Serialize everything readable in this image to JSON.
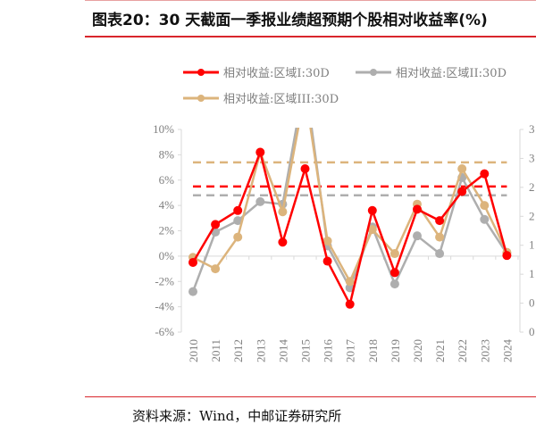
{
  "title": "图表20：30 天截面一季报业绩超预期个股相对收益率(%)",
  "source": "资料来源：Wind，中邮证券研究所",
  "chart_data": {
    "type": "line",
    "title": "图表20：30 天截面一季报业绩超预期个股相对收益率(%)",
    "categories": [
      "2010",
      "2011",
      "2012",
      "2013",
      "2014",
      "2015",
      "2016",
      "2017",
      "2018",
      "2019",
      "2020",
      "2021",
      "2022",
      "2023",
      "2024"
    ],
    "ylim": [
      -6,
      10
    ],
    "yticks": [
      "10%",
      "8%",
      "6%",
      "4%",
      "2%",
      "0%",
      "-2%",
      "-4%",
      "-6%"
    ],
    "y2ticks": [
      "3",
      "3",
      "2",
      "2",
      "1",
      "1",
      "0",
      "0"
    ],
    "grid": false,
    "legend_position": "top",
    "series": [
      {
        "name": "相对收益:区域I:30D",
        "color": "#ff0000",
        "values": [
          -0.5,
          2.5,
          3.6,
          8.2,
          1.1,
          6.9,
          -0.4,
          -3.8,
          3.6,
          -1.3,
          3.7,
          2.8,
          5.1,
          6.5,
          0.05
        ],
        "mean": 5.5
      },
      {
        "name": "相对收益:区域II:30D",
        "color": "#aeaeae",
        "values": [
          -2.8,
          1.9,
          2.8,
          4.3,
          4.1,
          14,
          0.8,
          -2.5,
          2.3,
          -2.2,
          1.6,
          0.2,
          6.2,
          2.9,
          0.2
        ],
        "mean": 4.8
      },
      {
        "name": "相对收益:区域III:30D",
        "color": "#dcb47c",
        "values": [
          -0.1,
          -1.0,
          1.5,
          8.2,
          3.5,
          13,
          1.2,
          -2.0,
          2.1,
          0.2,
          4.1,
          1.5,
          6.9,
          4.0,
          0.3
        ],
        "mean": 7.4
      }
    ]
  }
}
